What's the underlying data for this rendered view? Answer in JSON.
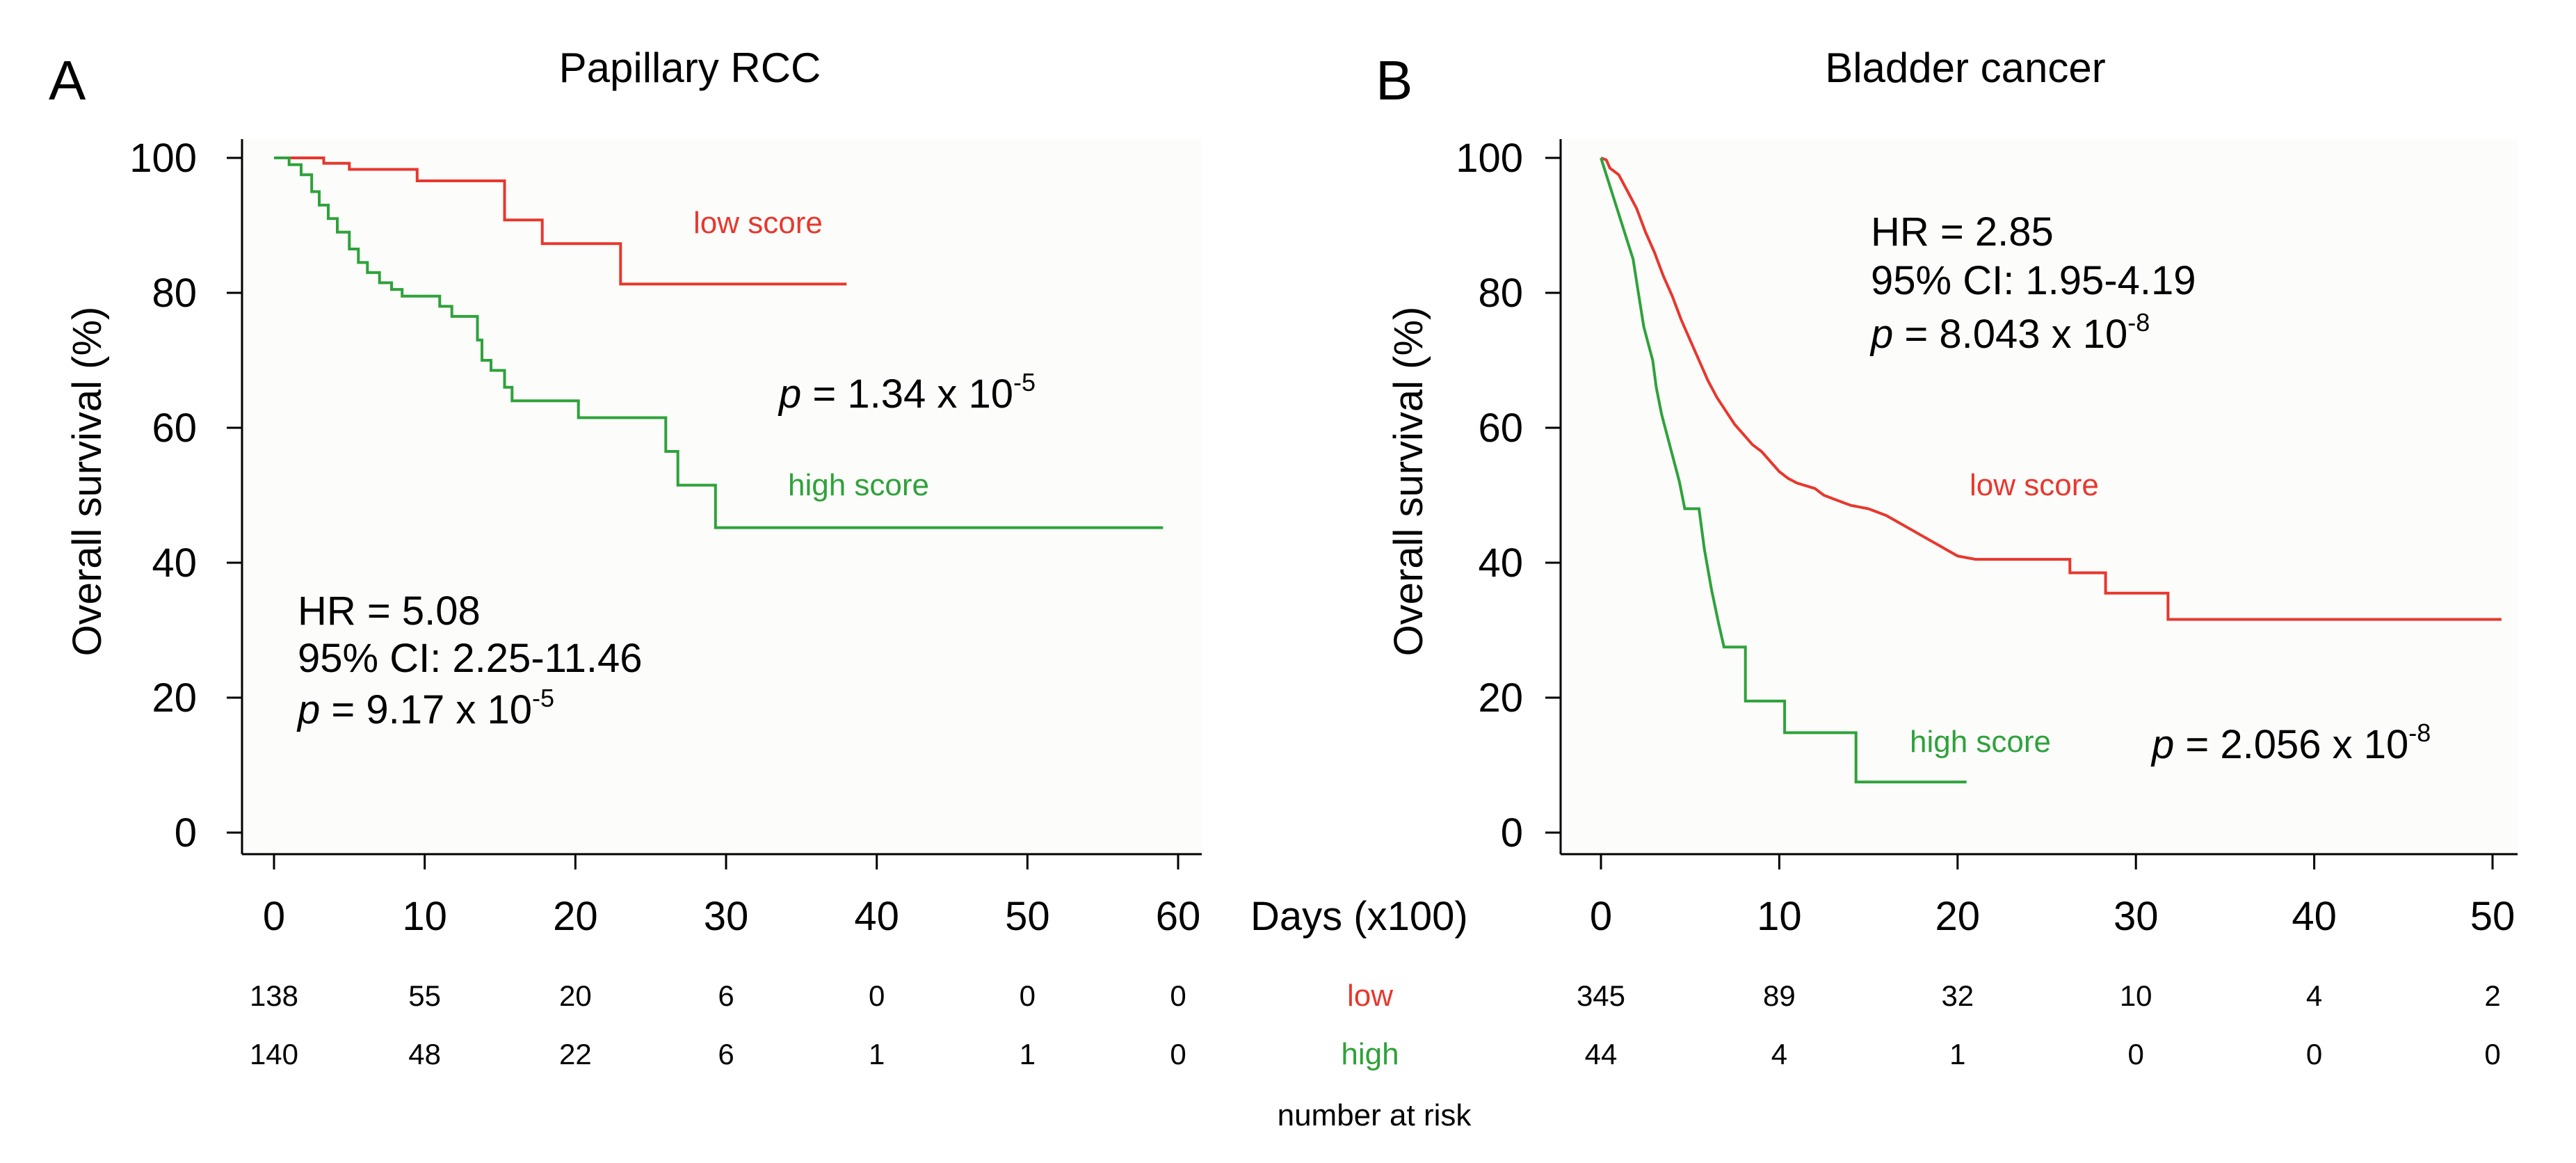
{
  "footer": "number at risk",
  "x_axis_label": "Days (x100)",
  "risk_row_labels": {
    "low": "low",
    "high": "high"
  },
  "colors": {
    "low": "#e8372d",
    "high": "#2ea23a"
  },
  "chart_data": [
    {
      "type": "line",
      "panel": "A",
      "title": "Papillary RCC",
      "ylabel": "Overall survival (%)",
      "xlabel": "Days (x100)",
      "xlim": [
        0,
        60
      ],
      "ylim": [
        0,
        100
      ],
      "xticks": [
        "0",
        "10",
        "20",
        "30",
        "40",
        "50",
        "60"
      ],
      "yticks": [
        "0",
        "20",
        "40",
        "60",
        "80",
        "100"
      ],
      "grid": false,
      "series": [
        {
          "name": "low score",
          "color": "#e8372d",
          "points": [
            [
              0,
              100
            ],
            [
              3.3,
              100
            ],
            [
              3.3,
              99.2
            ],
            [
              5,
              99.2
            ],
            [
              5,
              98.3
            ],
            [
              9.5,
              98.3
            ],
            [
              9.5,
              96.6
            ],
            [
              15.3,
              96.6
            ],
            [
              15.3,
              90.8
            ],
            [
              17.8,
              90.8
            ],
            [
              17.8,
              87.3
            ],
            [
              23,
              87.3
            ],
            [
              23,
              81.3
            ],
            [
              38,
              81.3
            ]
          ]
        },
        {
          "name": "high score",
          "color": "#2ea23a",
          "points": [
            [
              0,
              100
            ],
            [
              1,
              100
            ],
            [
              1,
              99
            ],
            [
              1.8,
              99
            ],
            [
              1.8,
              97.5
            ],
            [
              2.5,
              97.5
            ],
            [
              2.5,
              95
            ],
            [
              3,
              95
            ],
            [
              3,
              93
            ],
            [
              3.6,
              93
            ],
            [
              3.6,
              91
            ],
            [
              4.2,
              91
            ],
            [
              4.2,
              89
            ],
            [
              5,
              89
            ],
            [
              5,
              86.5
            ],
            [
              5.6,
              86.5
            ],
            [
              5.6,
              84.5
            ],
            [
              6.2,
              84.5
            ],
            [
              6.2,
              83
            ],
            [
              7,
              83
            ],
            [
              7,
              81.5
            ],
            [
              7.8,
              81.5
            ],
            [
              7.8,
              80.5
            ],
            [
              8.5,
              80.5
            ],
            [
              8.5,
              79.5
            ],
            [
              11,
              79.5
            ],
            [
              11,
              78
            ],
            [
              11.8,
              78
            ],
            [
              11.8,
              76.5
            ],
            [
              13.5,
              76.5
            ],
            [
              13.5,
              73
            ],
            [
              13.8,
              73
            ],
            [
              13.8,
              70
            ],
            [
              14.4,
              70
            ],
            [
              14.4,
              68.5
            ],
            [
              15.3,
              68.5
            ],
            [
              15.3,
              66
            ],
            [
              15.8,
              66
            ],
            [
              15.8,
              64
            ],
            [
              20.2,
              64
            ],
            [
              20.2,
              61.5
            ],
            [
              26,
              61.5
            ],
            [
              26,
              56.5
            ],
            [
              26.8,
              56.5
            ],
            [
              26.8,
              51.5
            ],
            [
              29.3,
              51.5
            ],
            [
              29.3,
              45.2
            ],
            [
              59,
              45.2
            ]
          ]
        }
      ],
      "annotations": [
        {
          "id": "legend_low",
          "text": "low score"
        },
        {
          "id": "legend_high",
          "text": "high score"
        },
        {
          "id": "p_value",
          "italic": "p",
          "text": " = 1.34 x 10",
          "sup": "-5"
        },
        {
          "id": "hr",
          "text": "HR = 5.08"
        },
        {
          "id": "ci",
          "text": "95% CI: 2.25-11.46"
        },
        {
          "id": "p_value_hr",
          "italic": "p",
          "text": " = 9.17 x 10",
          "sup": "-5"
        }
      ],
      "number_at_risk": {
        "x": [
          0,
          10,
          20,
          30,
          40,
          50,
          60
        ],
        "low": [
          "138",
          "55",
          "20",
          "6",
          "0",
          "0",
          "0"
        ],
        "high": [
          "140",
          "48",
          "22",
          "6",
          "1",
          "1",
          "0"
        ]
      }
    },
    {
      "type": "line",
      "panel": "B",
      "title": "Bladder cancer",
      "ylabel": "Overall survival (%)",
      "xlabel": "Days (x100)",
      "xlim": [
        0,
        50
      ],
      "ylim": [
        0,
        100
      ],
      "xticks": [
        "0",
        "10",
        "20",
        "30",
        "40",
        "50"
      ],
      "yticks": [
        "0",
        "20",
        "40",
        "60",
        "80",
        "100"
      ],
      "grid": false,
      "series": [
        {
          "name": "low score",
          "color": "#e8372d",
          "points": [
            [
              0,
              100
            ],
            [
              0.3,
              99.7
            ],
            [
              0.5,
              98.5
            ],
            [
              1,
              97.5
            ],
            [
              1.5,
              95
            ],
            [
              2,
              92.5
            ],
            [
              2.5,
              89
            ],
            [
              3,
              86
            ],
            [
              3.5,
              82.5
            ],
            [
              4,
              79.5
            ],
            [
              4.5,
              76
            ],
            [
              5,
              73
            ],
            [
              5.5,
              70
            ],
            [
              6,
              67
            ],
            [
              6.5,
              64.5
            ],
            [
              7,
              62.5
            ],
            [
              7.5,
              60.5
            ],
            [
              8,
              59
            ],
            [
              8.5,
              57.5
            ],
            [
              9,
              56.5
            ],
            [
              9.5,
              55
            ],
            [
              10,
              53.5
            ],
            [
              10.5,
              52.5
            ],
            [
              11,
              51.8
            ],
            [
              12,
              51
            ],
            [
              12.5,
              50
            ],
            [
              13,
              49.5
            ],
            [
              14,
              48.5
            ],
            [
              15,
              48
            ],
            [
              16,
              47
            ],
            [
              17,
              45.5
            ],
            [
              18,
              44
            ],
            [
              19,
              42.5
            ],
            [
              20,
              41
            ],
            [
              21,
              40.5
            ],
            [
              26.3,
              40.5
            ],
            [
              26.3,
              38.5
            ],
            [
              28.3,
              38.5
            ],
            [
              28.3,
              35.5
            ],
            [
              31.8,
              35.5
            ],
            [
              31.8,
              31.6
            ],
            [
              50.5,
              31.6
            ]
          ]
        },
        {
          "name": "high score",
          "color": "#2ea23a",
          "points": [
            [
              0,
              100
            ],
            [
              0.3,
              97.5
            ],
            [
              0.6,
              95
            ],
            [
              0.9,
              92.5
            ],
            [
              1.2,
              90
            ],
            [
              1.5,
              87.5
            ],
            [
              1.8,
              85
            ],
            [
              2.1,
              80
            ],
            [
              2.4,
              75
            ],
            [
              2.7,
              72
            ],
            [
              2.9,
              70
            ],
            [
              3.1,
              66
            ],
            [
              3.4,
              62
            ],
            [
              3.8,
              58
            ],
            [
              4.1,
              55
            ],
            [
              4.4,
              52
            ],
            [
              4.7,
              48
            ],
            [
              5.5,
              48
            ],
            [
              5.8,
              42
            ],
            [
              6.2,
              36
            ],
            [
              6.6,
              31
            ],
            [
              6.9,
              27.5
            ],
            [
              8.1,
              27.5
            ],
            [
              8.1,
              19.5
            ],
            [
              10.3,
              19.5
            ],
            [
              10.3,
              14.8
            ],
            [
              14.3,
              14.8
            ],
            [
              14.3,
              7.5
            ],
            [
              20.5,
              7.5
            ]
          ]
        }
      ],
      "annotations": [
        {
          "id": "hr",
          "text": "HR = 2.85"
        },
        {
          "id": "ci",
          "text": "95% CI: 1.95-4.19"
        },
        {
          "id": "p_value_hr",
          "italic": "p",
          "text": " = 8.043 x 10",
          "sup": "-8"
        },
        {
          "id": "legend_low",
          "text": "low score"
        },
        {
          "id": "legend_high",
          "text": "high score"
        },
        {
          "id": "p_value",
          "italic": "p",
          "text": " = 2.056 x 10",
          "sup": "-8"
        }
      ],
      "number_at_risk": {
        "x": [
          0,
          10,
          20,
          30,
          40,
          50
        ],
        "low": [
          "345",
          "89",
          "32",
          "10",
          "4",
          "2"
        ],
        "high": [
          "44",
          "4",
          "1",
          "0",
          "0",
          "0"
        ]
      }
    }
  ]
}
